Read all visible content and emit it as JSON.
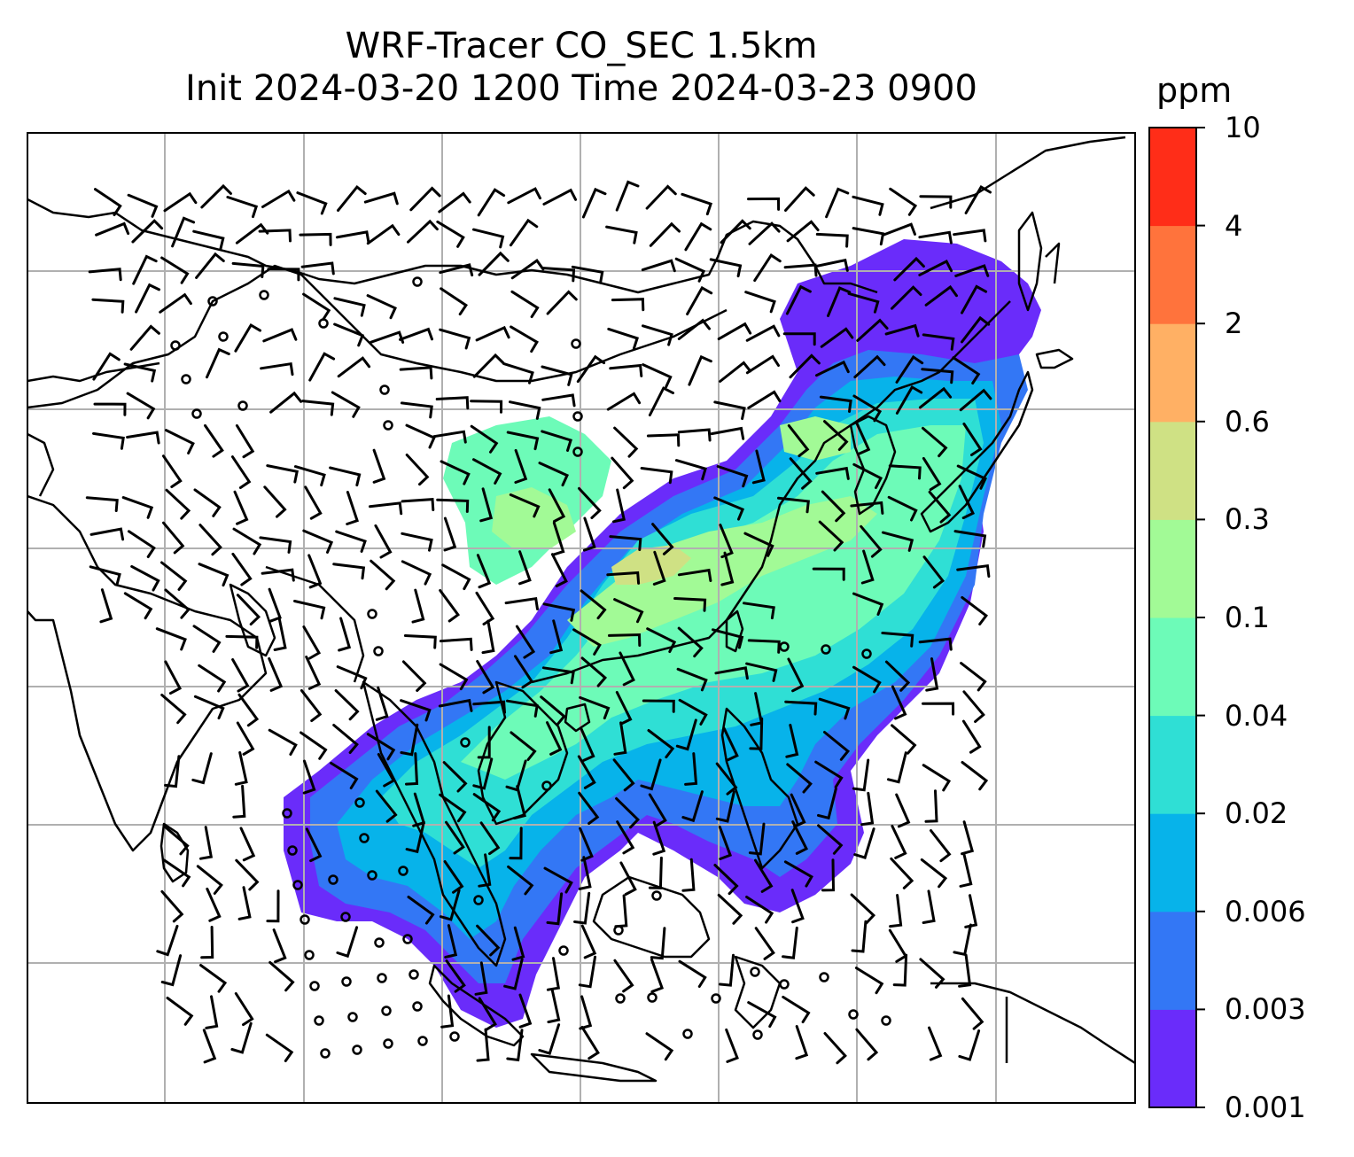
{
  "title": {
    "line1": "WRF-Tracer CO_SEC 1.5km",
    "line2": "Init 2024-03-20 1200 Time 2024-03-23 0900"
  },
  "colorbar": {
    "units": "ppm",
    "labels": [
      "0.001",
      "0.003",
      "0.006",
      "0.02",
      "0.04",
      "0.1",
      "0.3",
      "0.6",
      "2",
      "4",
      "10"
    ],
    "colors": [
      "#6a2cfa",
      "#3377f5",
      "#07b3ea",
      "#2fdfd5",
      "#6dfbb8",
      "#a2fa96",
      "#cfe184",
      "#ffb064",
      "#ff733c",
      "#ff2d18"
    ]
  },
  "map": {
    "frame_color": "#000000",
    "grid_color": "#b0b0b0",
    "coastline_color": "#000000",
    "wind_symbols": [
      "wind-barb",
      "calm-circle"
    ]
  }
}
